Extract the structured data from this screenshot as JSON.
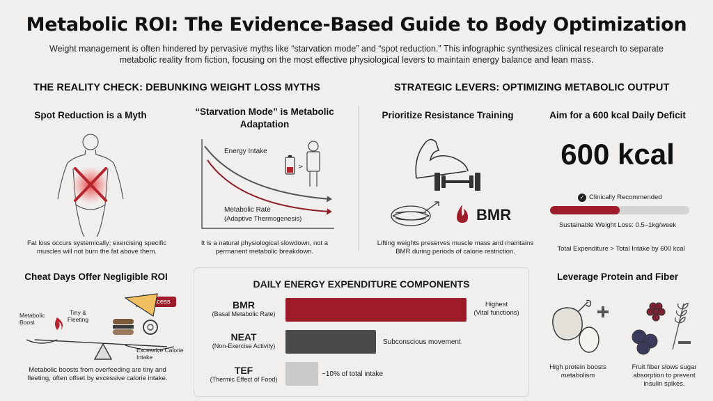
{
  "title": "Metabolic ROI: The Evidence-Based Guide to Body Optimization",
  "subtitle": "Weight management is often hindered by pervasive myths like “starvation mode” and “spot reduction.” This infographic synthesizes clinical research to separate metabolic reality from fiction, focusing on the most effective physiological levers to maintain energy balance and lean mass.",
  "colors": {
    "accent": "#9e1b2a",
    "dark_bar": "#4a4a4a",
    "light_bar": "#c9c9c9",
    "background": "#f0efed"
  },
  "myths": {
    "heading": "THE REALITY CHECK: DEBUNKING WEIGHT LOSS MYTHS",
    "spot": {
      "title": "Spot Reduction is a Myth",
      "caption": "Fat loss occurs systemically; exercising specific muscles will not burn the fat above them."
    },
    "starvation": {
      "title": "“Starvation Mode” is Metabolic Adaptation",
      "label_intake": "Energy Intake",
      "label_rate": "Metabolic Rate",
      "label_rate_sub": "(Adaptive Thermogenesis)",
      "caption": "It is a natural physiological slowdown, not a permanent metabolic breakdown."
    },
    "cheat": {
      "title": "Cheat Days Offer Negligible ROI",
      "badge": "Excess",
      "label_boost": "Metabolic Boost",
      "label_tiny": "Tiny & Fleeting",
      "label_excess": "Excessive Calorie Intake",
      "caption": "Metabolic boosts from overfeeding are tiny and fleeting, often offset by excessive calorie intake."
    }
  },
  "levers": {
    "heading": "STRATEGIC LEVERS: OPTIMIZING METABOLIC OUTPUT",
    "resistance": {
      "title": "Prioritize Resistance Training",
      "bmr_label": "BMR",
      "caption": "Lifting weights preserves muscle mass and maintains BMR during periods of calorie restriction."
    },
    "deficit": {
      "title": "Aim for a 600 kcal Daily Deficit",
      "big_value": "600 kcal",
      "badge": "Clinically Recommended",
      "progress_fraction": 0.5,
      "rate_text": "Sustainable Weight Loss: 0.5–1kg/week",
      "equation": "Total Expenditure > Total Intake by 600 kcal"
    },
    "protein": {
      "title": "Leverage Protein and Fiber",
      "caption_protein": "High protein boosts metabolism",
      "caption_fiber": "Fruit fiber slows sugar absorption to prevent insulin spikes."
    }
  },
  "expenditure": {
    "heading": "DAILY ENERGY EXPENDITURE COMPONENTS",
    "rows": [
      {
        "name": "BMR",
        "sub": "(Basal Metabolic Rate)",
        "note": "Highest",
        "note_sub": "(Vital functions)",
        "relative": 1.0,
        "color": "#9e1b2a"
      },
      {
        "name": "NEAT",
        "sub": "(Non-Exercise Activity)",
        "note": "Subconscious movement",
        "note_sub": "",
        "relative": 0.5,
        "color": "#4a4a4a"
      },
      {
        "name": "TEF",
        "sub": "(Thermic Effect of Food)",
        "note": "~10% of total intake",
        "note_sub": "",
        "relative": 0.18,
        "color": "#c9c9c9"
      }
    ]
  },
  "icons": [
    "body-icon",
    "battery-icon",
    "person-icon",
    "flame-icon",
    "scale-icon",
    "food-icon",
    "flexed-arm-icon",
    "dumbbell-icon",
    "muscle-fiber-icon",
    "check-icon",
    "chicken-icon",
    "egg-icon",
    "berries-icon",
    "wheat-icon",
    "plus-icon",
    "minus-icon"
  ]
}
